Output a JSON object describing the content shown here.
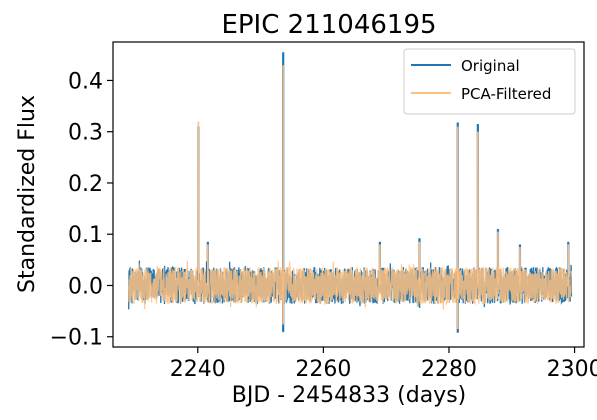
{
  "chart_data": {
    "type": "line",
    "title": "EPIC 211046195",
    "xlabel": "BJD - 2454833 (days)",
    "ylabel": "Standardized Flux",
    "xlim": [
      2226.5,
      2301.5
    ],
    "ylim": [
      -0.12,
      0.475
    ],
    "x_ticks": [
      2240,
      2260,
      2280,
      2300
    ],
    "x_tick_labels": [
      "2240",
      "2260",
      "2280",
      "2300"
    ],
    "y_ticks": [
      -0.1,
      0.0,
      0.1,
      0.2,
      0.3,
      0.4
    ],
    "y_tick_labels": [
      "−0.1",
      "0.0",
      "0.1",
      "0.2",
      "0.3",
      "0.4"
    ],
    "grid": false,
    "legend_position": "top-right",
    "series": [
      {
        "name": "Original",
        "color": "#1f77b4",
        "x_range": [
          2229.0,
          2299.5
        ],
        "baseline_band": [
          -0.045,
          0.045
        ],
        "spikes": [
          {
            "x": 2240.1,
            "y": 0.31
          },
          {
            "x": 2241.6,
            "y": 0.085
          },
          {
            "x": 2253.6,
            "y": 0.455
          },
          {
            "x": 2253.6,
            "y": -0.09
          },
          {
            "x": 2269.0,
            "y": 0.085
          },
          {
            "x": 2275.3,
            "y": 0.092
          },
          {
            "x": 2281.4,
            "y": 0.318
          },
          {
            "x": 2281.4,
            "y": -0.092
          },
          {
            "x": 2284.6,
            "y": 0.315
          },
          {
            "x": 2287.8,
            "y": 0.11
          },
          {
            "x": 2291.3,
            "y": 0.08
          },
          {
            "x": 2299.0,
            "y": 0.085
          }
        ]
      },
      {
        "name": "PCA-Filtered",
        "color": "#ffbf7f",
        "x_range": [
          2229.0,
          2299.5
        ],
        "baseline_band": [
          -0.045,
          0.045
        ],
        "spikes": [
          {
            "x": 2240.1,
            "y": 0.32
          },
          {
            "x": 2241.6,
            "y": 0.08
          },
          {
            "x": 2253.6,
            "y": 0.43
          },
          {
            "x": 2253.6,
            "y": -0.075
          },
          {
            "x": 2269.0,
            "y": 0.08
          },
          {
            "x": 2275.3,
            "y": 0.085
          },
          {
            "x": 2281.4,
            "y": 0.31
          },
          {
            "x": 2281.4,
            "y": -0.085
          },
          {
            "x": 2284.6,
            "y": 0.3
          },
          {
            "x": 2287.8,
            "y": 0.105
          },
          {
            "x": 2291.3,
            "y": 0.075
          },
          {
            "x": 2299.0,
            "y": 0.08
          }
        ]
      }
    ]
  }
}
